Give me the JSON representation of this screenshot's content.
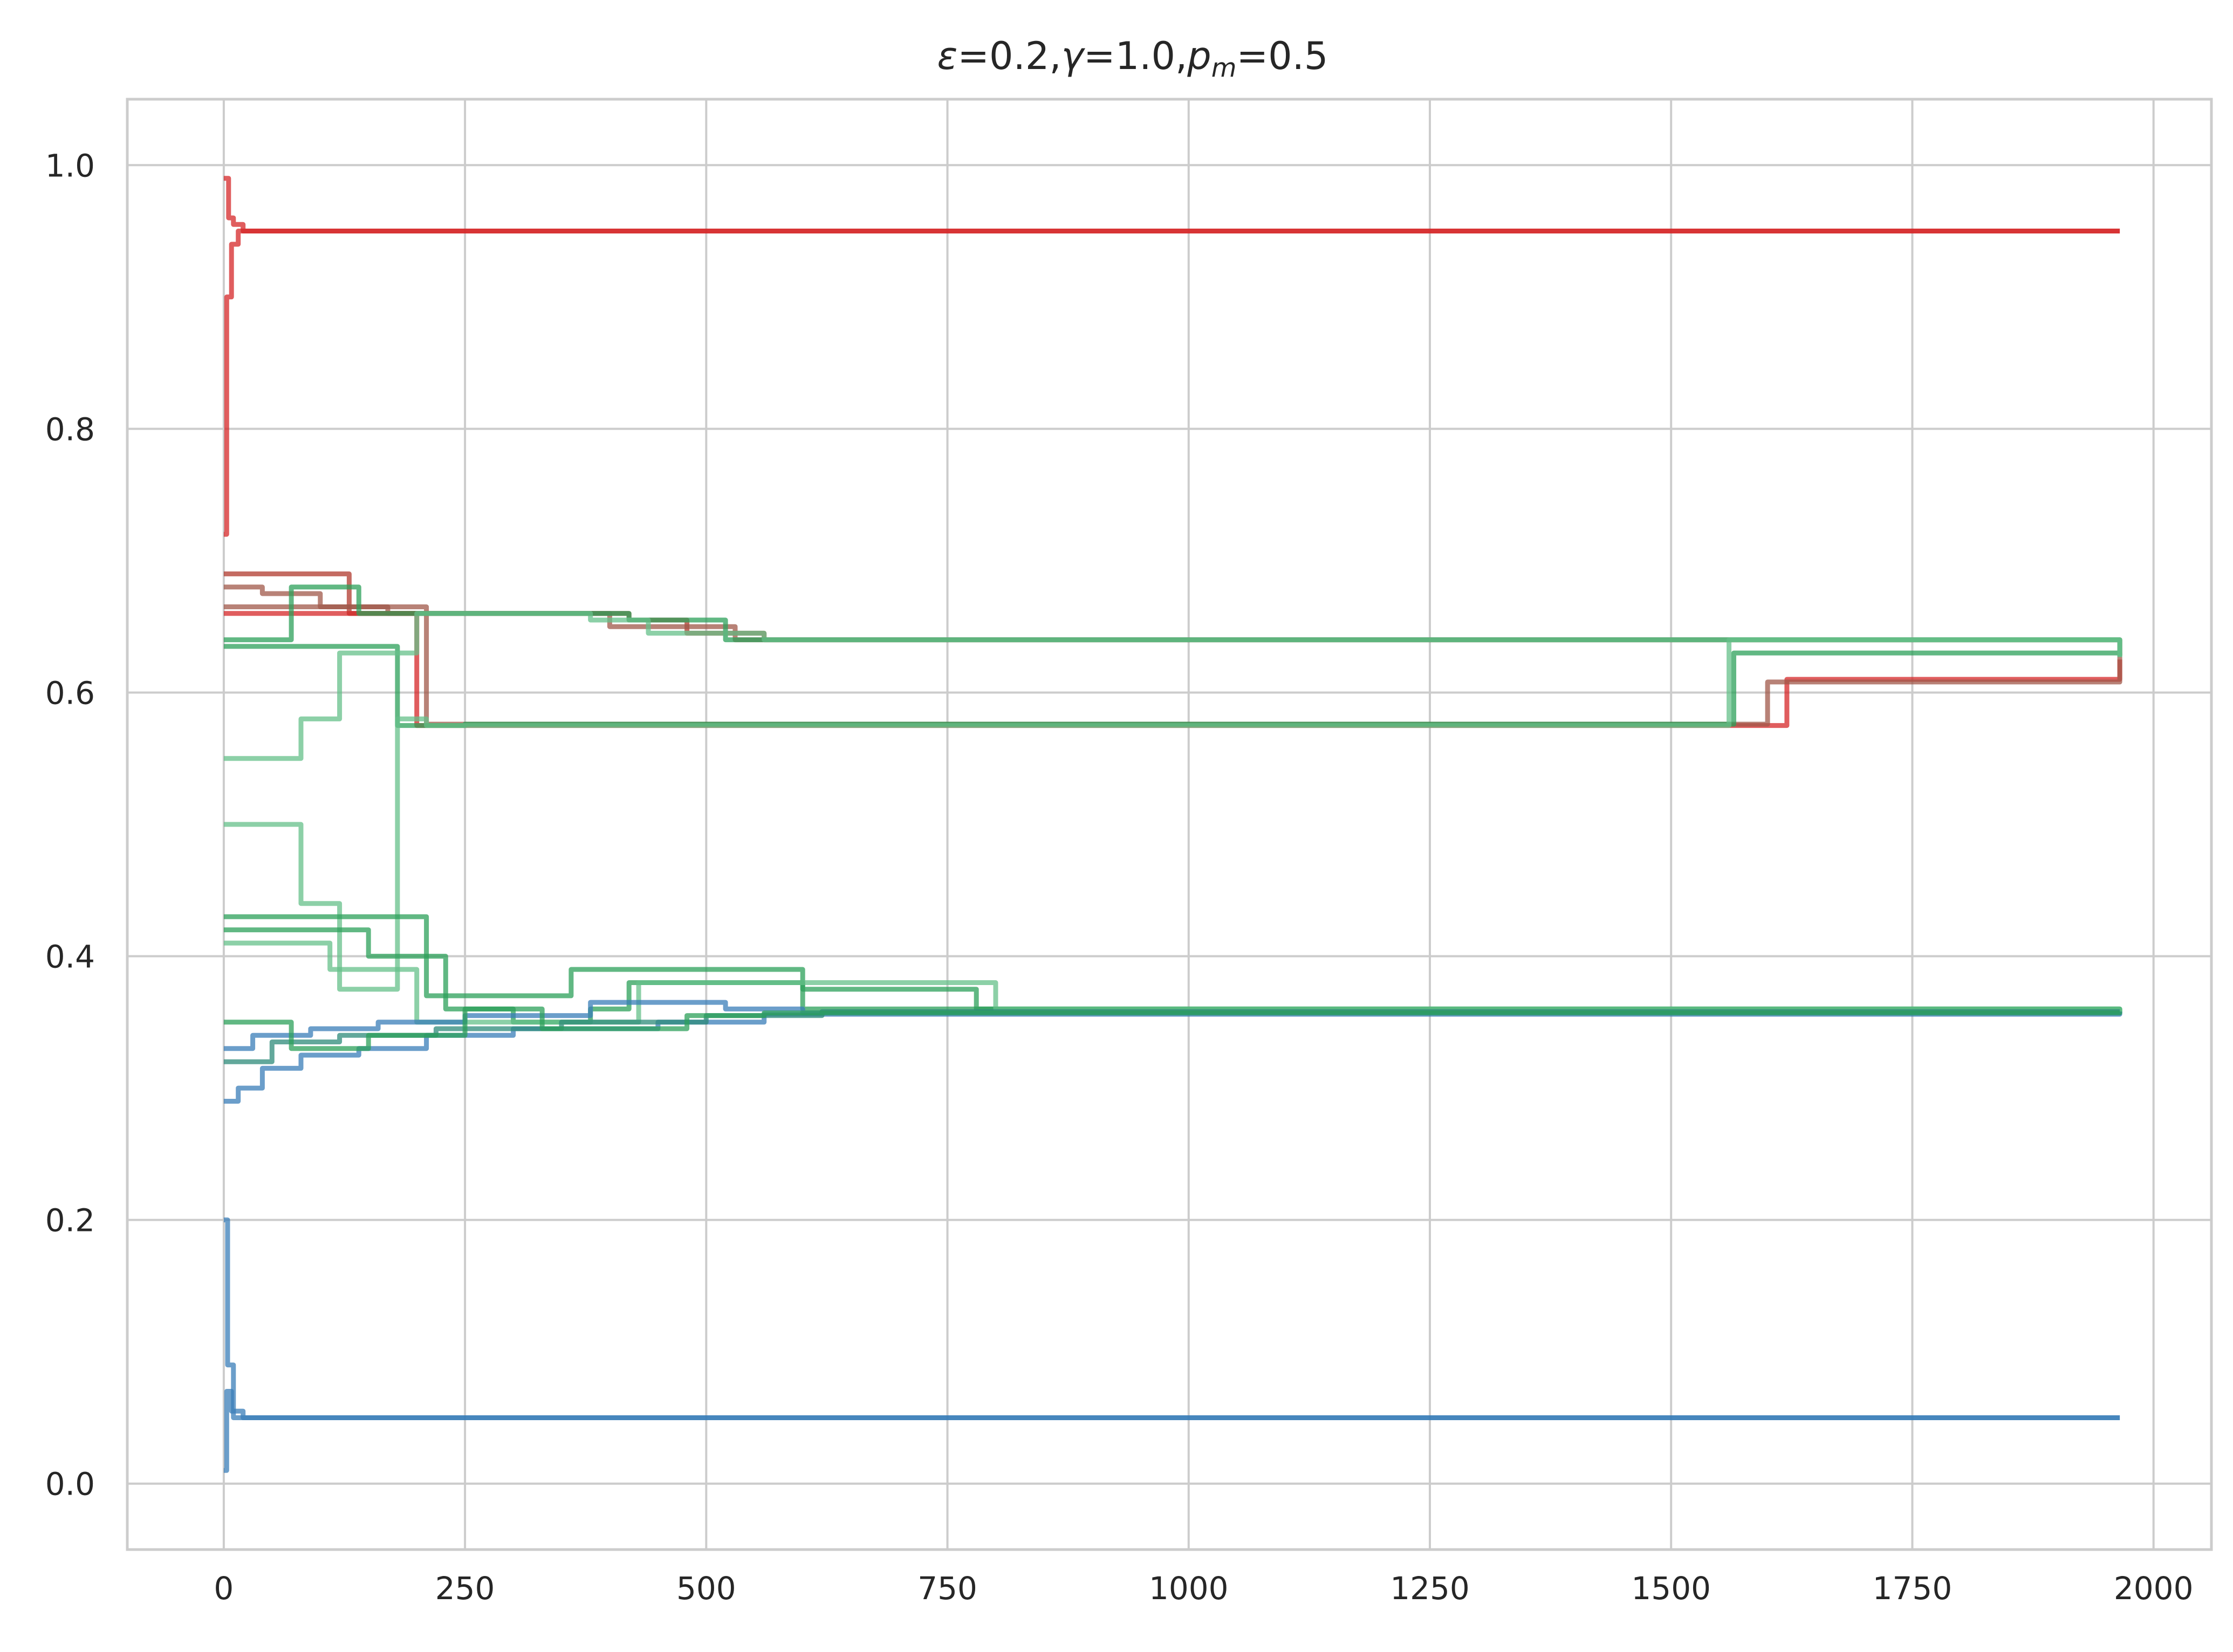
{
  "chart_data": {
    "type": "line",
    "title": {
      "epsilon_symbol": "ε",
      "epsilon_part": "=0.2,",
      "gamma_symbol": "γ",
      "gamma_part": "=1.0,",
      "p_symbol": "p",
      "p_subscript": "m",
      "p_part": "=0.5"
    },
    "xlabel": "",
    "ylabel": "",
    "xlim": [
      -100,
      2060
    ],
    "ylim": [
      -0.05,
      1.05
    ],
    "xticks": [
      0,
      250,
      500,
      750,
      1000,
      1250,
      1500,
      1750,
      2000
    ],
    "yticks": [
      0.0,
      0.2,
      0.4,
      0.6,
      0.8,
      1.0
    ],
    "xtick_labels": [
      "0",
      "250",
      "500",
      "750",
      "1000",
      "1250",
      "1500",
      "1750",
      "2000"
    ],
    "ytick_labels": [
      "0.0",
      "0.2",
      "0.4",
      "0.6",
      "0.8",
      "1.0"
    ],
    "grid": true,
    "legend": "none",
    "colors": {
      "red": "#d62728",
      "dark_red": "#b03a2e",
      "brown": "#a0584a",
      "green": "#2ca05a",
      "light_green": "#66c08a",
      "blue": "#3a7db8",
      "teal": "#2e8b7a",
      "grid": "#cccccc",
      "spine": "#cccccc"
    },
    "series": [
      {
        "color": "red",
        "x": [
          0,
          5,
          10,
          20,
          1965
        ],
        "y": [
          0.99,
          0.96,
          0.955,
          0.95,
          0.95
        ]
      },
      {
        "color": "red",
        "x": [
          0,
          3,
          8,
          15,
          1965
        ],
        "y": [
          0.72,
          0.9,
          0.94,
          0.95,
          0.95
        ]
      },
      {
        "color": "blue",
        "x": [
          0,
          3,
          8,
          20,
          1965
        ],
        "y": [
          0.01,
          0.07,
          0.055,
          0.05,
          0.05
        ]
      },
      {
        "color": "blue",
        "x": [
          0,
          4,
          10,
          1965
        ],
        "y": [
          0.2,
          0.09,
          0.05,
          0.05
        ]
      },
      {
        "color": "dark_red",
        "x": [
          0,
          60,
          130,
          190,
          350,
          420,
          480,
          560,
          700,
          1965
        ],
        "y": [
          0.69,
          0.69,
          0.66,
          0.66,
          0.66,
          0.655,
          0.645,
          0.64,
          0.64,
          0.628
        ]
      },
      {
        "color": "brown",
        "x": [
          0,
          40,
          100,
          170,
          260,
          400,
          530,
          640,
          1965
        ],
        "y": [
          0.68,
          0.675,
          0.665,
          0.66,
          0.66,
          0.65,
          0.64,
          0.64,
          0.628
        ]
      },
      {
        "color": "red",
        "x": [
          0,
          170,
          200,
          1580,
          1620,
          1965
        ],
        "y": [
          0.66,
          0.66,
          0.575,
          0.575,
          0.61,
          0.625
        ]
      },
      {
        "color": "brown",
        "x": [
          0,
          210,
          1570,
          1600,
          1900,
          1965
        ],
        "y": [
          0.665,
          0.576,
          0.576,
          0.608,
          0.608,
          0.627
        ]
      },
      {
        "color": "green",
        "x": [
          0,
          20,
          70,
          140,
          300,
          420,
          520,
          750,
          1965
        ],
        "y": [
          0.64,
          0.64,
          0.68,
          0.66,
          0.66,
          0.655,
          0.64,
          0.64,
          0.628
        ]
      },
      {
        "color": "green",
        "x": [
          0,
          10,
          180,
          250,
          1520,
          1565,
          1640,
          1965
        ],
        "y": [
          0.635,
          0.635,
          0.575,
          0.576,
          0.576,
          0.63,
          0.63,
          0.627
        ]
      },
      {
        "color": "light_green",
        "x": [
          0,
          80,
          120,
          200,
          380,
          440,
          560,
          700,
          1965
        ],
        "y": [
          0.55,
          0.58,
          0.63,
          0.66,
          0.655,
          0.645,
          0.64,
          0.64,
          0.628
        ]
      },
      {
        "color": "light_green",
        "x": [
          0,
          60,
          80,
          120,
          180,
          210,
          420,
          1500,
          1560,
          1965
        ],
        "y": [
          0.5,
          0.5,
          0.44,
          0.375,
          0.58,
          0.575,
          0.575,
          0.575,
          0.64,
          0.627
        ]
      },
      {
        "color": "green",
        "x": [
          0,
          200,
          210,
          340,
          360,
          600,
          780,
          1965
        ],
        "y": [
          0.43,
          0.43,
          0.37,
          0.37,
          0.39,
          0.375,
          0.36,
          0.358
        ]
      },
      {
        "color": "green",
        "x": [
          0,
          150,
          230,
          300,
          380,
          420,
          600,
          1965
        ],
        "y": [
          0.42,
          0.4,
          0.36,
          0.35,
          0.36,
          0.38,
          0.36,
          0.358
        ]
      },
      {
        "color": "light_green",
        "x": [
          0,
          110,
          200,
          350,
          430,
          540,
          800,
          1965
        ],
        "y": [
          0.41,
          0.39,
          0.35,
          0.35,
          0.38,
          0.38,
          0.36,
          0.358
        ]
      },
      {
        "color": "blue",
        "x": [
          0,
          15,
          40,
          80,
          140,
          210,
          300,
          450,
          560,
          1965
        ],
        "y": [
          0.29,
          0.3,
          0.315,
          0.325,
          0.33,
          0.34,
          0.345,
          0.35,
          0.356,
          0.358
        ]
      },
      {
        "color": "blue",
        "x": [
          0,
          30,
          90,
          160,
          250,
          380,
          520,
          600,
          1965
        ],
        "y": [
          0.33,
          0.34,
          0.345,
          0.35,
          0.355,
          0.365,
          0.36,
          0.357,
          0.358
        ]
      },
      {
        "color": "teal",
        "x": [
          0,
          50,
          120,
          220,
          350,
          500,
          620,
          860,
          1965
        ],
        "y": [
          0.32,
          0.335,
          0.34,
          0.345,
          0.35,
          0.355,
          0.358,
          0.358,
          0.358
        ]
      },
      {
        "color": "green",
        "x": [
          0,
          70,
          150,
          250,
          330,
          480,
          560,
          1965
        ],
        "y": [
          0.35,
          0.33,
          0.34,
          0.36,
          0.345,
          0.355,
          0.357,
          0.358
        ]
      }
    ]
  }
}
